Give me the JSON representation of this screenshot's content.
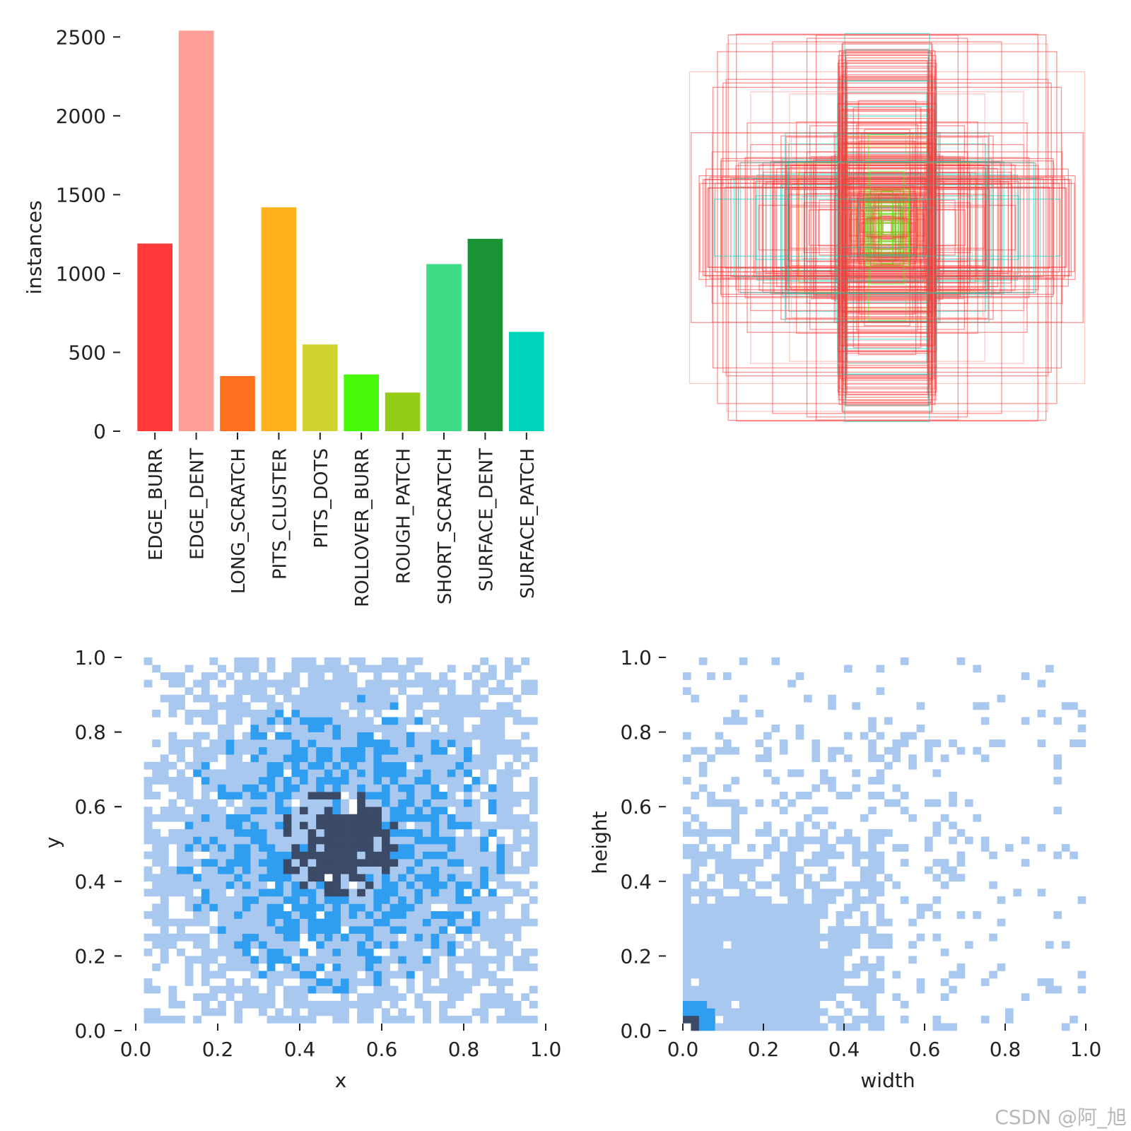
{
  "watermark": "CSDN @阿_旭",
  "chart_data": [
    {
      "type": "bar",
      "panel": "top-left",
      "title": "",
      "xlabel": "",
      "ylabel": "instances",
      "categories": [
        "EDGE_BURR",
        "EDGE_DENT",
        "LONG_SCRATCH",
        "PITS_CLUSTER",
        "PITS_DOTS",
        "ROLLOVER_BURR",
        "ROUGH_PATCH",
        "SHORT_SCRATCH",
        "SURFACE_DENT",
        "SURFACE_PATCH"
      ],
      "values": [
        1190,
        2540,
        350,
        1420,
        550,
        360,
        245,
        1060,
        1220,
        630
      ],
      "colors": [
        "#ff3838",
        "#ff9d97",
        "#ff701f",
        "#ffb21d",
        "#cfd231",
        "#48f90a",
        "#92cc17",
        "#3ddb86",
        "#1a9334",
        "#00d4bb"
      ],
      "ylim": [
        0,
        2600
      ],
      "yticks": [
        "0",
        "500",
        "1000",
        "1500",
        "2000",
        "2500"
      ],
      "ytick_values": [
        0,
        500,
        1000,
        1500,
        2000,
        2500
      ]
    },
    {
      "type": "box-overlay",
      "panel": "top-right",
      "description_colors": [
        "#ff3838",
        "#ff9d97",
        "#48f90a",
        "#00d4bb",
        "#ffb21d"
      ]
    },
    {
      "type": "heatmap",
      "panel": "bottom-left",
      "xlabel": "x",
      "ylabel": "y",
      "xlim": [
        0,
        1
      ],
      "ylim": [
        0,
        1
      ],
      "xticks": [
        "0.0",
        "0.2",
        "0.4",
        "0.6",
        "0.8",
        "1.0"
      ],
      "yticks": [
        "0.0",
        "0.2",
        "0.4",
        "0.6",
        "0.8",
        "1.0"
      ],
      "tick_values": [
        0,
        0.2,
        0.4,
        0.6,
        0.8,
        1.0
      ],
      "distribution": "dense cluster centered near (0.5, 0.5), spreading to 0.05–0.97",
      "colors": [
        "#a9c8f0",
        "#2f9ef0",
        "#3b4a66"
      ]
    },
    {
      "type": "heatmap",
      "panel": "bottom-right",
      "xlabel": "width",
      "ylabel": "height",
      "xlim": [
        0,
        1
      ],
      "ylim": [
        0,
        1
      ],
      "xticks": [
        "0.0",
        "0.2",
        "0.4",
        "0.6",
        "0.8",
        "1.0"
      ],
      "yticks": [
        "0.0",
        "0.2",
        "0.4",
        "0.6",
        "0.8",
        "1.0"
      ],
      "tick_values": [
        0,
        0.2,
        0.4,
        0.6,
        0.8,
        1.0
      ],
      "distribution": "densest near (0.02, 0.02), sparse spread toward larger width/height",
      "colors": [
        "#a9c8f0",
        "#2f9ef0",
        "#3b4a66"
      ]
    }
  ]
}
